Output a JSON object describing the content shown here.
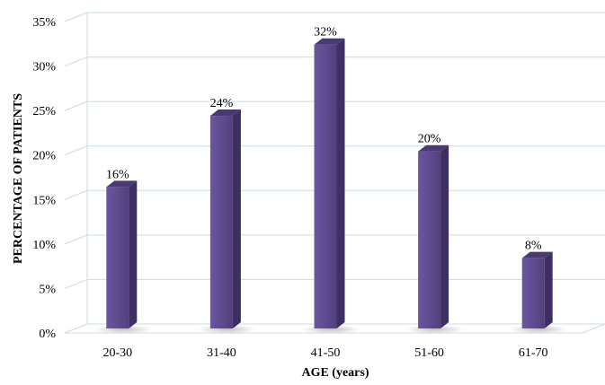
{
  "chart_data": {
    "type": "bar",
    "title": "",
    "xlabel": "AGE (years)",
    "ylabel": "PERCENTAGE OF PATIENTS",
    "categories": [
      "20-30",
      "31-40",
      "41-50",
      "51-60",
      "61-70"
    ],
    "values": [
      16,
      24,
      32,
      20,
      8
    ],
    "data_labels": [
      "16%",
      "24%",
      "32%",
      "20%",
      "8%"
    ],
    "y_ticks": [
      0,
      5,
      10,
      15,
      20,
      25,
      30,
      35
    ],
    "y_tick_labels": [
      "0%",
      "5%",
      "10%",
      "15%",
      "20%",
      "25%",
      "30%",
      "35%"
    ],
    "ylim": [
      0,
      35
    ],
    "grid": true,
    "legend": "none",
    "style": "3d-column",
    "colors": {
      "bar_front": "#5e4a8c",
      "bar_side": "#3e2f63",
      "bar_top": "#4a3a74",
      "grid": "#c7dbe9",
      "wall": "#c7dbe9"
    }
  }
}
